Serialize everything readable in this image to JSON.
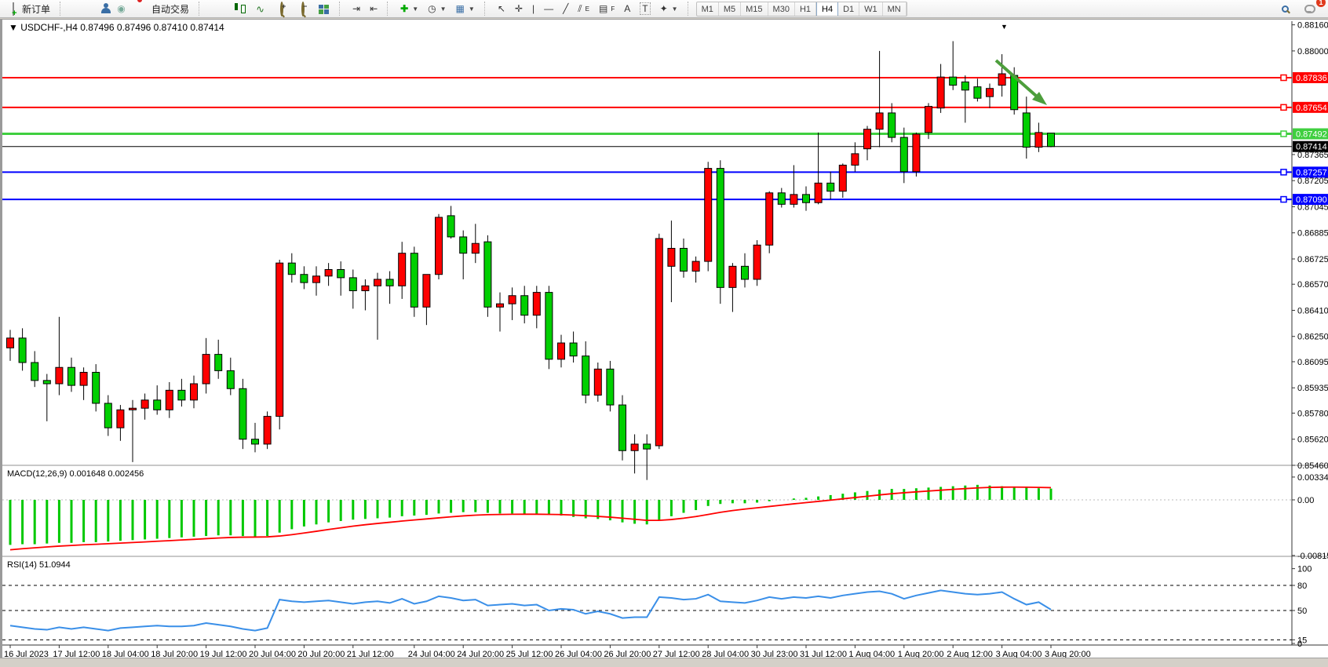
{
  "toolbar": {
    "new_order_label": "新订单",
    "auto_trading_label": "自动交易",
    "text_tool_label": "A",
    "label_tool_label": "T",
    "channel_tool_label": "E",
    "fibo_tool_label": "F",
    "timeframes": [
      "M1",
      "M5",
      "M15",
      "M30",
      "H1",
      "H4",
      "D1",
      "W1",
      "MN"
    ],
    "active_timeframe": "H4",
    "notification_badge": "1"
  },
  "chart_data": {
    "type": "candlestick",
    "title": {
      "symbol_period": "USDCHF-,H4",
      "ohlc_text": "0.87496 0.87496 0.87410 0.87414"
    },
    "collapse_marker": "▼",
    "colors": {
      "bull_candle": "#ff0000",
      "bear_candle": "#00cf00",
      "candle_outline": "#000000",
      "level_red": "#ff0000",
      "level_green": "#3fcf3f",
      "level_blue": "#0000ff",
      "bid_line": "#000000",
      "macd_histogram": "#00c800",
      "macd_signal": "#ff0000",
      "rsi_line": "#3a8fe8",
      "annotation_arrow": "#4d9e3c"
    },
    "price_levels": [
      {
        "price": 0.87836,
        "label": "0.87836",
        "color": "#ff0000",
        "width": 2
      },
      {
        "price": 0.87654,
        "label": "0.87654",
        "color": "#ff0000",
        "width": 2
      },
      {
        "price": 0.87492,
        "label": "0.87492",
        "color": "#3fcf3f",
        "width": 3
      },
      {
        "price": 0.87414,
        "label": "0.87414",
        "color": "#000000",
        "width": 1
      },
      {
        "price": 0.87257,
        "label": "0.87257",
        "color": "#0000ff",
        "width": 2
      },
      {
        "price": 0.8709,
        "label": "0.87090",
        "color": "#0000ff",
        "width": 2
      }
    ],
    "y_axis_ticks": [
      "0.88160",
      "0.88000",
      "0.87365",
      "0.87205",
      "0.87045",
      "0.86885",
      "0.86725",
      "0.86570",
      "0.86410",
      "0.86250",
      "0.86095",
      "0.85935",
      "0.85780",
      "0.85620",
      "0.85460"
    ],
    "x_axis_labels": [
      {
        "label": "16 Jul 2023",
        "bar": 0
      },
      {
        "label": "17 Jul 12:00",
        "bar": 4
      },
      {
        "label": "18 Jul 04:00",
        "bar": 8
      },
      {
        "label": "18 Jul 20:00",
        "bar": 12
      },
      {
        "label": "19 Jul 12:00",
        "bar": 16
      },
      {
        "label": "20 Jul 04:00",
        "bar": 20
      },
      {
        "label": "20 Jul 20:00",
        "bar": 24
      },
      {
        "label": "21 Jul 12:00",
        "bar": 28
      },
      {
        "label": "24 Jul 04:00",
        "bar": 33
      },
      {
        "label": "24 Jul 20:00",
        "bar": 37
      },
      {
        "label": "25 Jul 12:00",
        "bar": 41
      },
      {
        "label": "26 Jul 04:00",
        "bar": 45
      },
      {
        "label": "26 Jul 20:00",
        "bar": 49
      },
      {
        "label": "27 Jul 12:00",
        "bar": 53
      },
      {
        "label": "28 Jul 04:00",
        "bar": 57
      },
      {
        "label": "30 Jul 23:00",
        "bar": 61
      },
      {
        "label": "31 Jul 12:00",
        "bar": 65
      },
      {
        "label": "1 Aug 04:00",
        "bar": 69
      },
      {
        "label": "1 Aug 20:00",
        "bar": 73
      },
      {
        "label": "2 Aug 12:00",
        "bar": 77
      },
      {
        "label": "3 Aug 04:00",
        "bar": 81
      },
      {
        "label": "3 Aug 20:00",
        "bar": 85
      }
    ],
    "ohlc_x100000": [
      [
        86180,
        86290,
        86100,
        86240
      ],
      [
        86240,
        86300,
        86040,
        86090
      ],
      [
        86090,
        86160,
        85940,
        85980
      ],
      [
        85980,
        86020,
        85730,
        85960
      ],
      [
        85960,
        86370,
        85890,
        86060
      ],
      [
        86060,
        86120,
        85910,
        85950
      ],
      [
        85950,
        86060,
        85860,
        86030
      ],
      [
        86030,
        86080,
        85790,
        85840
      ],
      [
        85840,
        85890,
        85640,
        85690
      ],
      [
        85690,
        85830,
        85610,
        85800
      ],
      [
        85800,
        85860,
        85480,
        85810
      ],
      [
        85810,
        85900,
        85740,
        85860
      ],
      [
        85860,
        85950,
        85770,
        85800
      ],
      [
        85800,
        85970,
        85750,
        85920
      ],
      [
        85920,
        85990,
        85820,
        85860
      ],
      [
        85860,
        86010,
        85810,
        85960
      ],
      [
        85960,
        86240,
        85900,
        86140
      ],
      [
        86140,
        86230,
        85990,
        86040
      ],
      [
        86040,
        86120,
        85890,
        85930
      ],
      [
        85930,
        85990,
        85560,
        85620
      ],
      [
        85620,
        85720,
        85540,
        85590
      ],
      [
        85590,
        85790,
        85560,
        85760
      ],
      [
        85760,
        86720,
        85680,
        86700
      ],
      [
        86700,
        86760,
        86580,
        86630
      ],
      [
        86630,
        86680,
        86540,
        86580
      ],
      [
        86580,
        86680,
        86500,
        86620
      ],
      [
        86620,
        86700,
        86560,
        86660
      ],
      [
        86660,
        86710,
        86500,
        86610
      ],
      [
        86610,
        86660,
        86420,
        86530
      ],
      [
        86530,
        86600,
        86410,
        86560
      ],
      [
        86560,
        86640,
        86230,
        86600
      ],
      [
        86600,
        86650,
        86450,
        86560
      ],
      [
        86560,
        86830,
        86480,
        86760
      ],
      [
        86760,
        86800,
        86370,
        86430
      ],
      [
        86430,
        86500,
        86320,
        86630
      ],
      [
        86630,
        87000,
        86600,
        86980
      ],
      [
        86990,
        87050,
        86850,
        86860
      ],
      [
        86860,
        86900,
        86600,
        86760
      ],
      [
        86760,
        86940,
        86700,
        86820
      ],
      [
        86830,
        86870,
        86370,
        86430
      ],
      [
        86430,
        86520,
        86280,
        86450
      ],
      [
        86450,
        86550,
        86350,
        86500
      ],
      [
        86500,
        86560,
        86330,
        86380
      ],
      [
        86380,
        86560,
        86300,
        86520
      ],
      [
        86520,
        86560,
        86050,
        86110
      ],
      [
        86110,
        86260,
        86060,
        86210
      ],
      [
        86210,
        86280,
        86090,
        86130
      ],
      [
        86130,
        86220,
        85840,
        85890
      ],
      [
        85890,
        86090,
        85850,
        86050
      ],
      [
        86050,
        86100,
        85790,
        85830
      ],
      [
        85830,
        85890,
        85490,
        85550
      ],
      [
        85550,
        85650,
        85410,
        85590
      ],
      [
        85590,
        85650,
        85370,
        85560
      ],
      [
        85580,
        86880,
        85560,
        86850
      ],
      [
        86680,
        86960,
        86460,
        86790
      ],
      [
        86790,
        86850,
        86610,
        86650
      ],
      [
        86650,
        86740,
        86580,
        86710
      ],
      [
        86710,
        87320,
        86650,
        87280
      ],
      [
        87280,
        87330,
        86450,
        86550
      ],
      [
        86550,
        86700,
        86400,
        86680
      ],
      [
        86680,
        86760,
        86550,
        86600
      ],
      [
        86600,
        86840,
        86560,
        86810
      ],
      [
        86810,
        87140,
        86760,
        87130
      ],
      [
        87130,
        87160,
        87040,
        87060
      ],
      [
        87060,
        87300,
        87040,
        87120
      ],
      [
        87120,
        87170,
        87020,
        87070
      ],
      [
        87070,
        87500,
        87060,
        87190
      ],
      [
        87190,
        87260,
        87090,
        87140
      ],
      [
        87140,
        87310,
        87100,
        87300
      ],
      [
        87300,
        87440,
        87260,
        87370
      ],
      [
        87400,
        87540,
        87330,
        87520
      ],
      [
        87520,
        88000,
        87410,
        87620
      ],
      [
        87620,
        87680,
        87440,
        87470
      ],
      [
        87470,
        87530,
        87190,
        87260
      ],
      [
        87260,
        87500,
        87230,
        87490
      ],
      [
        87500,
        87680,
        87460,
        87660
      ],
      [
        87650,
        87920,
        87620,
        87840
      ],
      [
        87840,
        88060,
        87760,
        87790
      ],
      [
        87810,
        87850,
        87560,
        87760
      ],
      [
        87780,
        87830,
        87690,
        87710
      ],
      [
        87720,
        87800,
        87650,
        87770
      ],
      [
        87790,
        87980,
        87720,
        87860
      ],
      [
        87850,
        87900,
        87610,
        87640
      ],
      [
        87620,
        87720,
        87340,
        87410
      ],
      [
        87410,
        87560,
        87380,
        87500
      ],
      [
        87496,
        87496,
        87410,
        87414
      ]
    ],
    "macd": {
      "label": "MACD(12,26,9) 0.001648 0.002456",
      "axis_ticks": [
        {
          "v": 0.003344,
          "label": "0.003344"
        },
        {
          "v": 0.0,
          "label": "0.00"
        },
        {
          "v": -0.008152,
          "label": "-0.008152"
        }
      ],
      "values_x10000": [
        -66,
        -65,
        -65,
        -64,
        -63,
        -63,
        -62,
        -62,
        -61,
        -60,
        -59,
        -58,
        -57,
        -56,
        -55,
        -54,
        -53,
        -52,
        -52,
        -53,
        -54,
        -53,
        -48,
        -43,
        -39,
        -36,
        -33,
        -31,
        -29,
        -28,
        -27,
        -26,
        -24,
        -23,
        -22,
        -20,
        -19,
        -18,
        -18,
        -19,
        -20,
        -20,
        -21,
        -21,
        -22,
        -23,
        -25,
        -27,
        -28,
        -30,
        -33,
        -35,
        -36,
        -30,
        -24,
        -19,
        -15,
        -9,
        -6,
        -5,
        -5,
        -4,
        -2,
        0,
        2,
        3,
        5,
        7,
        9,
        11,
        13,
        15,
        16,
        16,
        17,
        18,
        19,
        20,
        21,
        22,
        21,
        20,
        19,
        18,
        17,
        16.48
      ]
    },
    "rsi": {
      "label": "RSI(14) 51.0944",
      "axis_ticks": [
        {
          "v": 100,
          "label": "100"
        },
        {
          "v": 80,
          "label": "80"
        },
        {
          "v": 50,
          "label": "50"
        },
        {
          "v": 15,
          "label": "15"
        },
        {
          "v": 0,
          "label": "0"
        }
      ],
      "dashed_levels": [
        80,
        50,
        15
      ],
      "values": [
        32,
        30,
        28,
        27,
        30,
        28,
        30,
        28,
        26,
        29,
        30,
        31,
        32,
        31,
        31,
        32,
        35,
        33,
        31,
        28,
        26,
        29,
        63,
        61,
        60,
        61,
        62,
        60,
        58,
        60,
        61,
        59,
        64,
        58,
        61,
        67,
        65,
        62,
        63,
        56,
        57,
        58,
        56,
        57,
        50,
        52,
        51,
        46,
        49,
        46,
        41,
        42,
        42,
        66,
        65,
        63,
        64,
        69,
        61,
        60,
        59,
        62,
        66,
        64,
        66,
        65,
        67,
        65,
        68,
        70,
        72,
        73,
        70,
        64,
        68,
        71,
        74,
        72,
        70,
        69,
        70,
        72,
        64,
        57,
        60,
        51.09
      ]
    }
  }
}
